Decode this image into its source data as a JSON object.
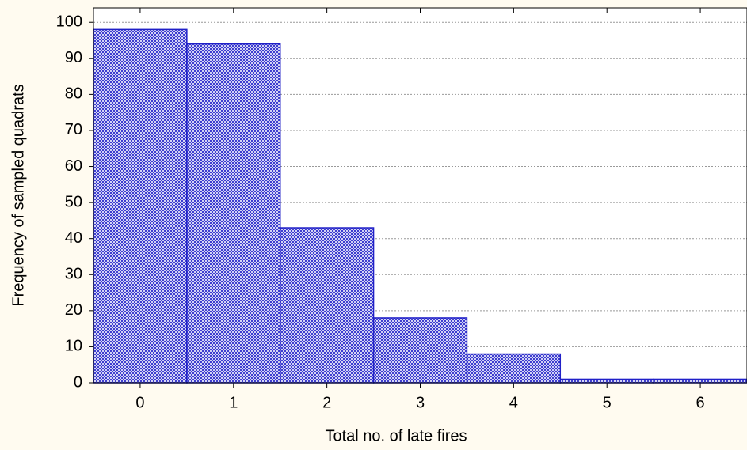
{
  "chart_data": {
    "type": "bar",
    "x_label": "Total no. of late fires",
    "y_label": "Frequency of sampled quadrats",
    "categories": [
      "0",
      "1",
      "2",
      "3",
      "4",
      "5",
      "6"
    ],
    "values": [
      98,
      94,
      43,
      18,
      8,
      1,
      1
    ],
    "color": "#2020c8",
    "ylim": [
      0,
      104
    ],
    "yticks": [
      0,
      10,
      20,
      30,
      40,
      50,
      60,
      70,
      80,
      90,
      100
    ],
    "grid": true
  }
}
